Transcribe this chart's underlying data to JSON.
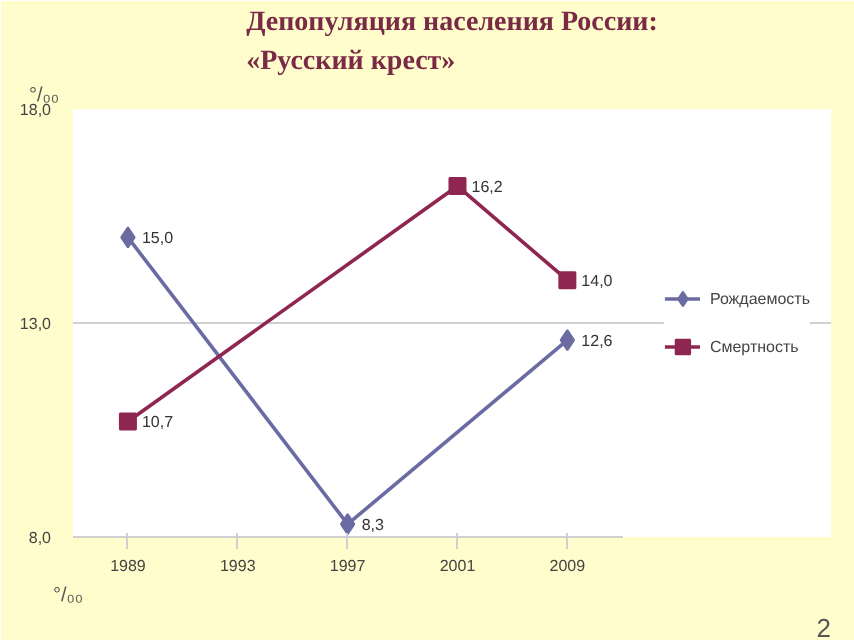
{
  "chart_data": {
    "type": "line",
    "title": "Депопуляция населения России:\n«Русский крест»",
    "ylabel": "°/₀₀",
    "categories": [
      "1989",
      "1993",
      "1997",
      "2001",
      "2009"
    ],
    "series": [
      {
        "name": "Рождаемость",
        "color": "#6b6ba3",
        "marker": "diamond",
        "values": [
          15.0,
          null,
          8.3,
          null,
          12.6
        ],
        "value_labels": [
          "15,0",
          null,
          "8,3",
          null,
          "12,6"
        ]
      },
      {
        "name": "Смертность",
        "color": "#8e2651",
        "marker": "square",
        "values": [
          10.7,
          null,
          null,
          16.2,
          14.0
        ],
        "value_labels": [
          "10,7",
          null,
          null,
          "16,2",
          "14,0"
        ]
      }
    ],
    "ylim": [
      8,
      18
    ],
    "yticks": [
      {
        "value": 8,
        "label": "8,0"
      },
      {
        "value": 13,
        "label": "13,0"
      },
      {
        "value": 18,
        "label": "18,0"
      }
    ],
    "grid": "y",
    "legend": "right",
    "line_style": "solid",
    "annotations": [
      "°/₀₀",
      "2"
    ]
  }
}
